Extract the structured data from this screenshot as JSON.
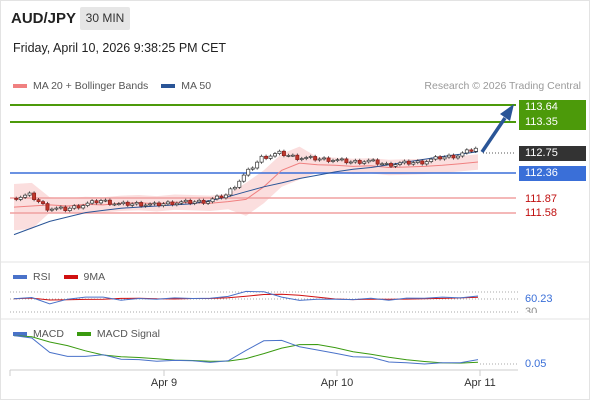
{
  "header": {
    "symbol": "AUD/JPY",
    "interval": "30 MIN",
    "datetime": "Friday, April 10, 2026 9:38:25 PM CET"
  },
  "credit": "Research © 2026 Trading Central",
  "legends": {
    "price": [
      {
        "label": "MA 20 + Bollinger Bands",
        "color": "#f08080"
      },
      {
        "label": "MA 50",
        "color": "#2a5597"
      }
    ],
    "rsi": [
      {
        "label": "RSI",
        "color": "#4a72c9"
      },
      {
        "label": "9MA",
        "color": "#d01010"
      }
    ],
    "macd": [
      {
        "label": "MACD",
        "color": "#4a72c9"
      },
      {
        "label": "MACD Signal",
        "color": "#3a9a10"
      }
    ]
  },
  "levels": {
    "r2": "113.64",
    "r1": "113.35",
    "last": "112.75",
    "pivot": "112.36",
    "s1": "111.87",
    "s2": "111.58"
  },
  "colors": {
    "resistance": "#4c9a0a",
    "pivot": "#3a6fd8",
    "support": "#f0a0a0",
    "support_text": "#c01010",
    "last": "#333333",
    "arrow": "#2a5597"
  },
  "rsi_readout": {
    "value": "60.23",
    "level": "30"
  },
  "macd_readout": {
    "value": "0.05"
  },
  "x_axis": {
    "labels": [
      "Apr 9",
      "Apr 10",
      "Apr 11"
    ]
  },
  "chart_data": {
    "type": "line",
    "price_range": [
      110.9,
      113.9
    ],
    "series": [
      {
        "name": "MA 20 + Bollinger Bands",
        "values": [
          111.68,
          111.7,
          111.72,
          111.7,
          111.73,
          111.72,
          111.75,
          111.76,
          111.74,
          111.77,
          111.76,
          111.75,
          111.78,
          111.82,
          112.05,
          112.35,
          112.48,
          112.45,
          112.44,
          112.42,
          112.43,
          112.4,
          112.41,
          112.42,
          112.44,
          112.47,
          112.5
        ]
      },
      {
        "name": "MA 50",
        "values": [
          111.18,
          111.3,
          111.42,
          111.5,
          111.58,
          111.62,
          111.66,
          111.68,
          111.7,
          111.72,
          111.74,
          111.8,
          111.87,
          111.96,
          112.05,
          112.12,
          112.2,
          112.26,
          112.32,
          112.37,
          112.4,
          112.45,
          112.5,
          112.55,
          112.6,
          112.64,
          112.69
        ]
      }
    ],
    "close": [
      111.84,
      111.9,
      111.66,
      111.64,
      111.72,
      111.8,
      111.73,
      111.74,
      111.72,
      111.76,
      111.77,
      111.79,
      111.9,
      112.25,
      112.58,
      112.66,
      112.58,
      112.56,
      112.54,
      112.5,
      112.52,
      112.45,
      112.48,
      112.5,
      112.58,
      112.62,
      112.75
    ]
  }
}
